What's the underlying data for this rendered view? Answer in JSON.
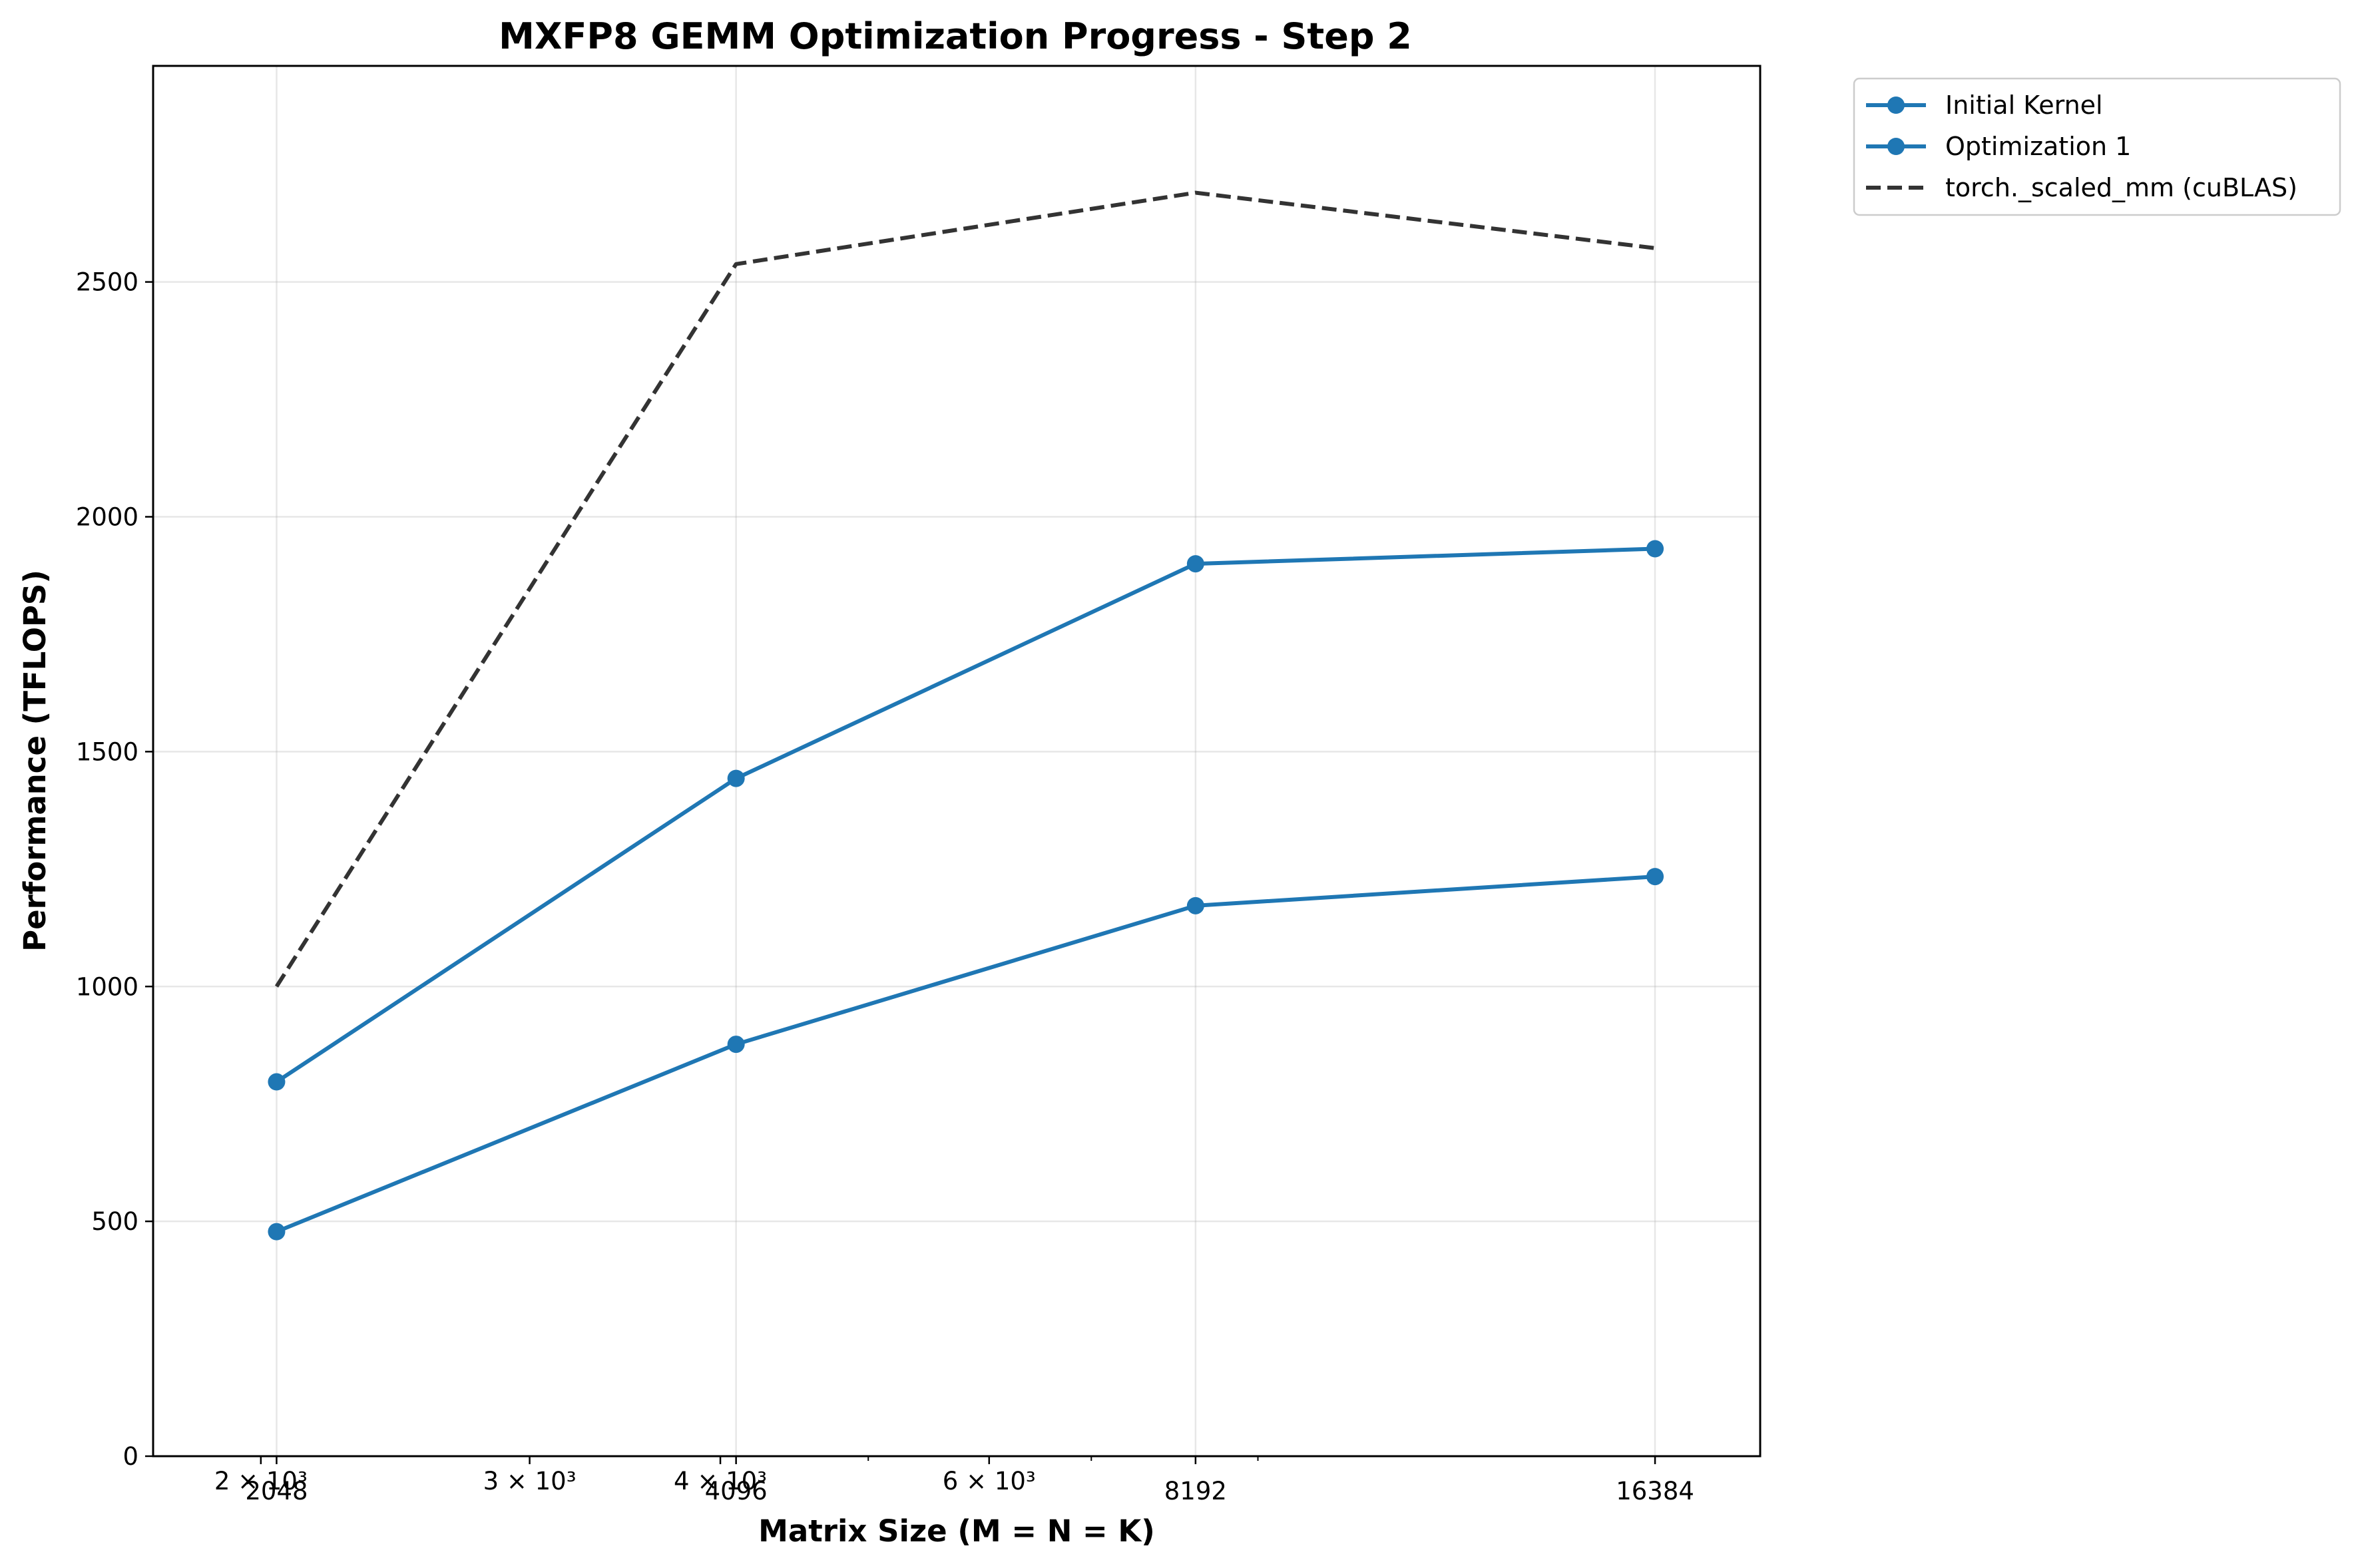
{
  "chart_data": {
    "type": "line",
    "title": "MXFP8 GEMM Optimization Progress - Step 2",
    "xlabel": "Matrix Size (M = N = K)",
    "ylabel": "Performance (TFLOPS)",
    "x_scale": "log",
    "x": [
      2048,
      4096,
      8192,
      16384
    ],
    "x_tick_labels": [
      "2048",
      "4096",
      "8192",
      "16384"
    ],
    "x_log_tick_labels": [
      {
        "value": 2000,
        "label": "2 × 10³"
      },
      {
        "value": 3000,
        "label": "3 × 10³"
      },
      {
        "value": 4000,
        "label": "4 × 10³"
      },
      {
        "value": 6000,
        "label": "6 × 10³"
      }
    ],
    "x_minor_ticks": [
      5000,
      7000,
      9000
    ],
    "xlim": [
      1700,
      19200
    ],
    "ylim": [
      0,
      2960
    ],
    "y_ticks": [
      0,
      500,
      1000,
      1500,
      2000,
      2500
    ],
    "grid": true,
    "legend_position": "outside-top-right",
    "series": [
      {
        "name": "Initial Kernel",
        "values": [
          478,
          877,
          1172,
          1234
        ],
        "color": "#1f77b4",
        "style": "solid",
        "marker": "circle"
      },
      {
        "name": "Optimization 1",
        "values": [
          797,
          1443,
          1900,
          1932
        ],
        "color": "#1f77b4",
        "style": "solid",
        "marker": "circle"
      },
      {
        "name": "torch._scaled_mm (cuBLAS)",
        "values": [
          1000,
          2538,
          2690,
          2572
        ],
        "color": "#333333",
        "style": "dashed",
        "marker": "none"
      }
    ]
  }
}
